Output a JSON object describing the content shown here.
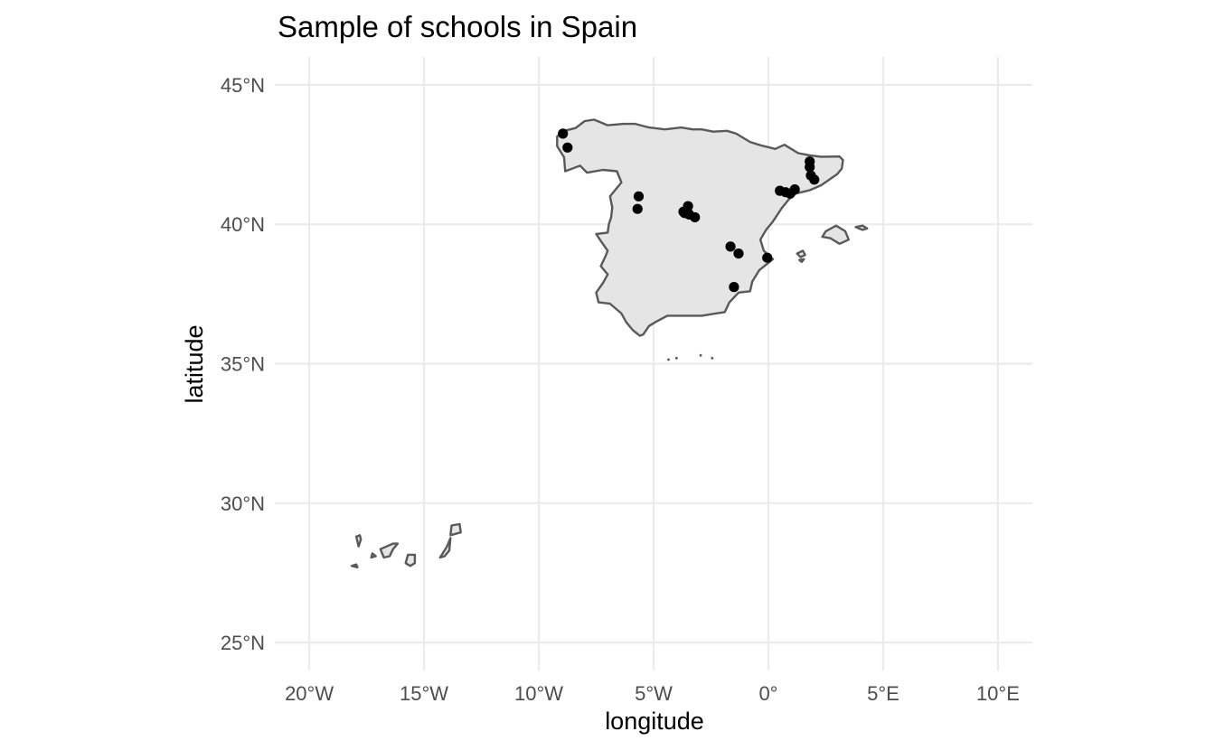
{
  "chart_data": {
    "type": "scatter",
    "title": "Sample of schools in Spain",
    "xlabel": "longitude",
    "ylabel": "latitude",
    "xlim": [
      -21.5,
      11.5
    ],
    "ylim": [
      24,
      46
    ],
    "grid": true,
    "x_ticks": [
      {
        "value": -20,
        "label": "20°W"
      },
      {
        "value": -15,
        "label": "15°W"
      },
      {
        "value": -10,
        "label": "10°W"
      },
      {
        "value": -5,
        "label": "5°W"
      },
      {
        "value": 0,
        "label": "0°"
      },
      {
        "value": 5,
        "label": "5°E"
      },
      {
        "value": 10,
        "label": "10°E"
      }
    ],
    "y_ticks": [
      {
        "value": 25,
        "label": "25°N"
      },
      {
        "value": 30,
        "label": "30°N"
      },
      {
        "value": 35,
        "label": "35°N"
      },
      {
        "value": 40,
        "label": "40°N"
      },
      {
        "value": 45,
        "label": "45°N"
      }
    ],
    "points": [
      {
        "lon": -8.95,
        "lat": 43.25
      },
      {
        "lon": -8.75,
        "lat": 42.75
      },
      {
        "lon": -5.65,
        "lat": 41.0
      },
      {
        "lon": -5.7,
        "lat": 40.55
      },
      {
        "lon": -3.7,
        "lat": 40.45
      },
      {
        "lon": -3.65,
        "lat": 40.4
      },
      {
        "lon": -3.5,
        "lat": 40.65
      },
      {
        "lon": -3.45,
        "lat": 40.35
      },
      {
        "lon": -3.55,
        "lat": 40.5
      },
      {
        "lon": -3.2,
        "lat": 40.25
      },
      {
        "lon": -1.65,
        "lat": 39.2
      },
      {
        "lon": -1.3,
        "lat": 38.95
      },
      {
        "lon": -0.05,
        "lat": 38.8
      },
      {
        "lon": -1.5,
        "lat": 37.75
      },
      {
        "lon": 0.5,
        "lat": 41.2
      },
      {
        "lon": 0.75,
        "lat": 41.15
      },
      {
        "lon": 0.95,
        "lat": 41.1
      },
      {
        "lon": 1.15,
        "lat": 41.25
      },
      {
        "lon": 1.8,
        "lat": 42.25
      },
      {
        "lon": 1.8,
        "lat": 42.05
      },
      {
        "lon": 1.85,
        "lat": 41.75
      },
      {
        "lon": 2.0,
        "lat": 41.6
      }
    ],
    "basemap": {
      "mainland": [
        [
          -9.2,
          43.15
        ],
        [
          -8.9,
          43.35
        ],
        [
          -8.4,
          43.45
        ],
        [
          -8.0,
          43.7
        ],
        [
          -7.6,
          43.75
        ],
        [
          -7.0,
          43.55
        ],
        [
          -6.3,
          43.6
        ],
        [
          -5.8,
          43.6
        ],
        [
          -5.2,
          43.47
        ],
        [
          -4.5,
          43.4
        ],
        [
          -3.8,
          43.47
        ],
        [
          -3.3,
          43.4
        ],
        [
          -2.9,
          43.4
        ],
        [
          -2.4,
          43.32
        ],
        [
          -1.8,
          43.35
        ],
        [
          -1.4,
          43.25
        ],
        [
          -0.8,
          42.95
        ],
        [
          -0.3,
          42.82
        ],
        [
          0.3,
          42.7
        ],
        [
          0.7,
          42.85
        ],
        [
          1.3,
          42.55
        ],
        [
          1.8,
          42.47
        ],
        [
          2.3,
          42.42
        ],
        [
          3.1,
          42.43
        ],
        [
          3.25,
          42.3
        ],
        [
          3.2,
          42.0
        ],
        [
          3.0,
          41.8
        ],
        [
          2.3,
          41.4
        ],
        [
          1.8,
          41.22
        ],
        [
          1.2,
          41.1
        ],
        [
          0.9,
          40.9
        ],
        [
          0.6,
          40.6
        ],
        [
          0.2,
          40.1
        ],
        [
          -0.1,
          39.8
        ],
        [
          -0.35,
          39.45
        ],
        [
          -0.2,
          39.05
        ],
        [
          0.2,
          38.75
        ],
        [
          -0.4,
          38.35
        ],
        [
          -0.7,
          37.95
        ],
        [
          -0.8,
          37.6
        ],
        [
          -1.3,
          37.55
        ],
        [
          -1.7,
          37.2
        ],
        [
          -1.9,
          36.85
        ],
        [
          -2.3,
          36.8
        ],
        [
          -2.9,
          36.72
        ],
        [
          -3.5,
          36.72
        ],
        [
          -4.4,
          36.72
        ],
        [
          -4.9,
          36.5
        ],
        [
          -5.2,
          36.35
        ],
        [
          -5.45,
          36.05
        ],
        [
          -5.6,
          36.0
        ],
        [
          -5.9,
          36.2
        ],
        [
          -6.2,
          36.5
        ],
        [
          -6.4,
          36.8
        ],
        [
          -6.9,
          37.15
        ],
        [
          -7.4,
          37.2
        ],
        [
          -7.5,
          37.55
        ],
        [
          -7.2,
          37.9
        ],
        [
          -7.0,
          38.2
        ],
        [
          -7.3,
          38.5
        ],
        [
          -7.1,
          38.85
        ],
        [
          -7.0,
          39.05
        ],
        [
          -7.3,
          39.4
        ],
        [
          -7.5,
          39.65
        ],
        [
          -7.0,
          39.7
        ],
        [
          -6.95,
          40.0
        ],
        [
          -6.85,
          40.25
        ],
        [
          -6.8,
          40.6
        ],
        [
          -6.9,
          41.0
        ],
        [
          -6.4,
          41.5
        ],
        [
          -6.6,
          41.9
        ],
        [
          -7.2,
          41.95
        ],
        [
          -7.9,
          41.85
        ],
        [
          -8.2,
          42.1
        ],
        [
          -8.85,
          41.9
        ],
        [
          -8.9,
          42.4
        ],
        [
          -9.2,
          42.8
        ]
      ],
      "islands": [
        [
          [
            3.1,
            39.3
          ],
          [
            3.5,
            39.45
          ],
          [
            3.35,
            39.75
          ],
          [
            2.95,
            39.95
          ],
          [
            2.5,
            39.75
          ],
          [
            2.35,
            39.55
          ],
          [
            2.7,
            39.5
          ]
        ],
        [
          [
            3.8,
            39.9
          ],
          [
            4.1,
            39.95
          ],
          [
            4.3,
            39.85
          ],
          [
            4.1,
            39.8
          ]
        ],
        [
          [
            1.25,
            38.95
          ],
          [
            1.5,
            39.05
          ],
          [
            1.6,
            38.9
          ],
          [
            1.4,
            38.82
          ]
        ],
        [
          [
            1.35,
            38.72
          ],
          [
            1.55,
            38.75
          ],
          [
            1.45,
            38.65
          ]
        ],
        [
          [
            -13.45,
            29.25
          ],
          [
            -13.4,
            28.95
          ],
          [
            -13.85,
            28.85
          ],
          [
            -13.8,
            29.2
          ]
        ],
        [
          [
            -13.85,
            28.75
          ],
          [
            -13.9,
            28.3
          ],
          [
            -14.1,
            28.1
          ],
          [
            -14.3,
            28.05
          ],
          [
            -14.0,
            28.45
          ]
        ],
        [
          [
            -15.4,
            28.15
          ],
          [
            -15.4,
            27.85
          ],
          [
            -15.6,
            27.75
          ],
          [
            -15.8,
            27.85
          ],
          [
            -15.7,
            28.15
          ]
        ],
        [
          [
            -16.15,
            28.55
          ],
          [
            -16.35,
            28.55
          ],
          [
            -16.9,
            28.35
          ],
          [
            -16.75,
            28.05
          ],
          [
            -16.5,
            28.1
          ],
          [
            -16.35,
            28.35
          ]
        ],
        [
          [
            -17.25,
            28.2
          ],
          [
            -17.1,
            28.1
          ],
          [
            -17.3,
            28.05
          ]
        ],
        [
          [
            -17.8,
            28.85
          ],
          [
            -17.95,
            28.8
          ],
          [
            -17.85,
            28.45
          ],
          [
            -17.75,
            28.7
          ]
        ],
        [
          [
            -17.95,
            27.8
          ],
          [
            -18.15,
            27.75
          ],
          [
            -17.9,
            27.7
          ]
        ]
      ],
      "islets": [
        [
          -4.35,
          35.15
        ],
        [
          -4.0,
          35.2
        ],
        [
          -2.95,
          35.3
        ],
        [
          -2.45,
          35.2
        ]
      ]
    }
  }
}
